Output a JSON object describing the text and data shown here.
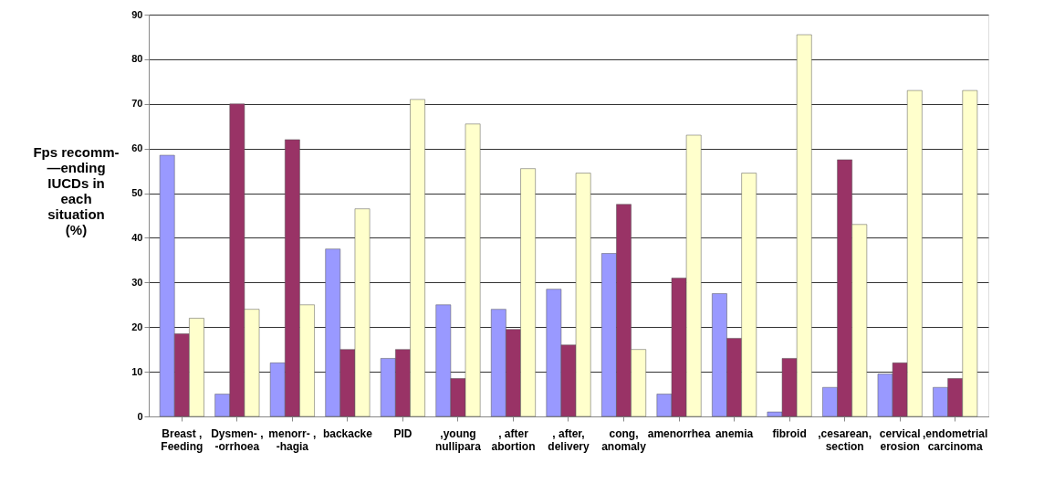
{
  "chart_data": {
    "type": "bar",
    "ylabel": "Fps recomm-\n—ending\nIUCDs in\neach\nsituation\n(%)",
    "categories": [
      "Breast ,\nFeeding",
      "Dysmen- ,\n-orrhoea",
      "menorr- ,\n-hagia",
      "backacke",
      "PID",
      ",young\nnullipara",
      ", after\nabortion",
      ", after,\ndelivery",
      "cong,\nanomaly",
      "amenorrhea",
      "anemia",
      "fibroid",
      ",cesarean,\nsection",
      "cervical\nerosion",
      ",endometrial\ncarcinoma"
    ],
    "series": [
      {
        "color": "#9999ff",
        "values": [
          58.5,
          5,
          12,
          37.5,
          13,
          25,
          24,
          28.5,
          36.5,
          5,
          27.5,
          1,
          6.5,
          9.5,
          6.5
        ]
      },
      {
        "color": "#993366",
        "values": [
          18.5,
          70,
          62,
          15,
          15,
          8.5,
          19.5,
          16,
          47.5,
          31,
          17.5,
          13,
          57.5,
          12,
          8.5
        ]
      },
      {
        "color": "#ffffcc",
        "values": [
          22,
          24,
          25,
          46.5,
          71,
          65.5,
          55.5,
          54.5,
          15,
          63,
          54.5,
          85.5,
          43,
          73,
          73
        ]
      }
    ],
    "ylim": [
      0,
      90
    ],
    "yticks": [
      0,
      10,
      20,
      30,
      40,
      50,
      60,
      70,
      80,
      90
    ],
    "grid": "y",
    "legend": false
  }
}
